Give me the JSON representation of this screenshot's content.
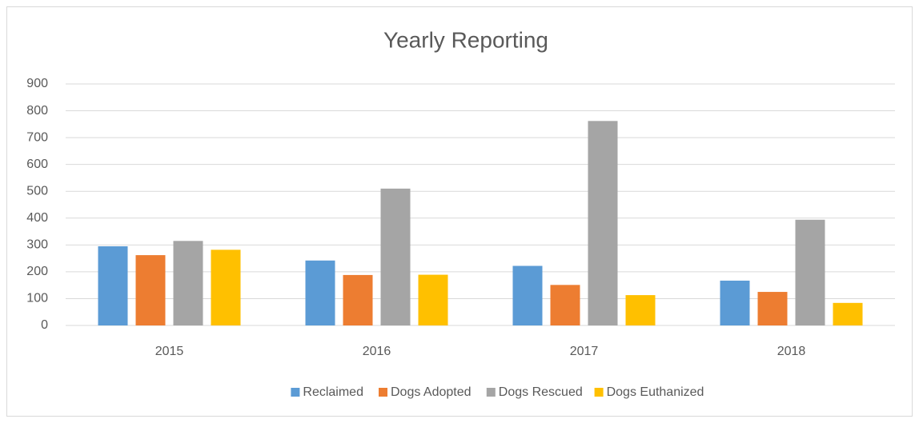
{
  "chart_data": {
    "type": "bar",
    "title": "Yearly Reporting",
    "categories": [
      "2015",
      "2016",
      "2017",
      "2018"
    ],
    "series": [
      {
        "name": "Reclaimed",
        "color": "#5b9bd5",
        "values": [
          295,
          242,
          222,
          167
        ]
      },
      {
        "name": "Dogs Adopted",
        "color": "#ed7d31",
        "values": [
          262,
          188,
          151,
          125
        ]
      },
      {
        "name": "Dogs Rescued",
        "color": "#a5a5a5",
        "values": [
          315,
          510,
          762,
          394
        ]
      },
      {
        "name": "Dogs Euthanized",
        "color": "#ffc000",
        "values": [
          282,
          189,
          113,
          84
        ]
      }
    ],
    "ylim": [
      0,
      900
    ],
    "yticks": [
      0,
      100,
      200,
      300,
      400,
      500,
      600,
      700,
      800,
      900
    ],
    "grid": true,
    "legend": "bottom"
  }
}
